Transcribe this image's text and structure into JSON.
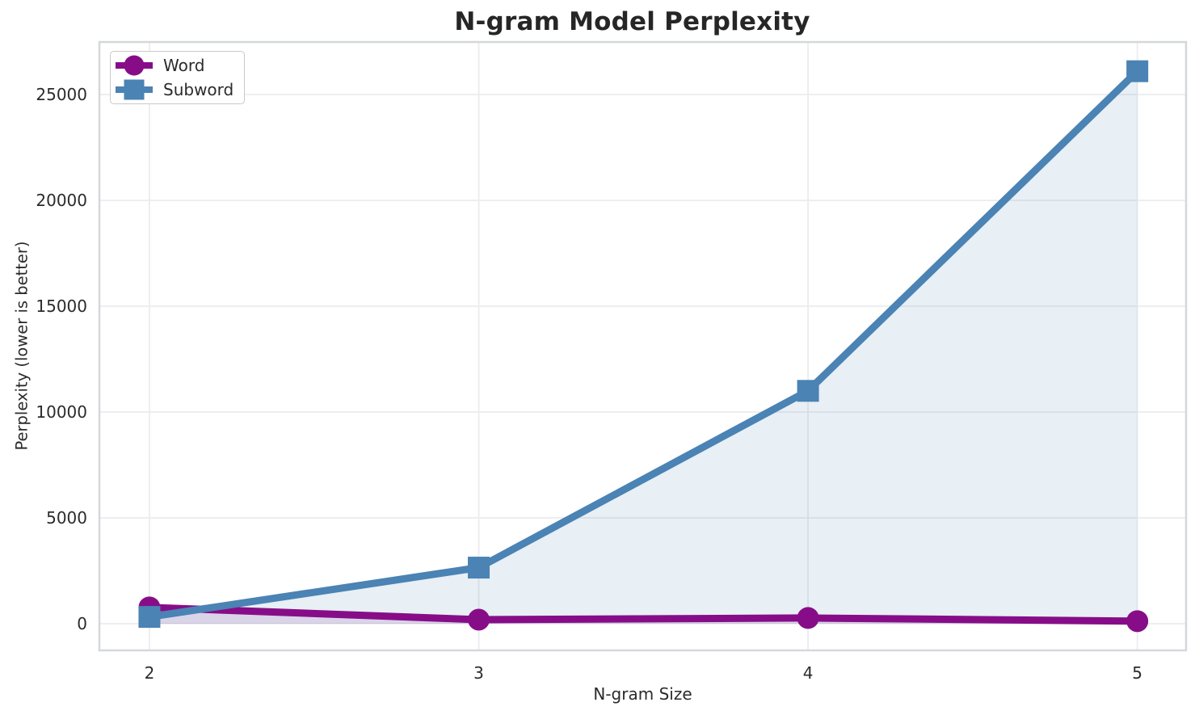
{
  "chart_data": {
    "type": "line",
    "title": "N-gram Model Perplexity",
    "xlabel": "N-gram Size",
    "ylabel": "Perplexity (lower is better)",
    "x": [
      2,
      3,
      4,
      5
    ],
    "series": [
      {
        "name": "Word",
        "color": "#870D88",
        "marker": "circle",
        "values": [
          770,
          190,
          270,
          120
        ],
        "fill_to_zero": true,
        "fill_alpha": 0.13
      },
      {
        "name": "Subword",
        "color": "#4A83B4",
        "marker": "square",
        "values": [
          320,
          2650,
          11000,
          26100
        ],
        "fill_to_zero": true,
        "fill_alpha": 0.13
      }
    ],
    "xticks": [
      2,
      3,
      4,
      5
    ],
    "yticks": [
      0,
      5000,
      10000,
      15000,
      20000,
      25000
    ],
    "xlim": [
      1.848,
      5.148
    ],
    "ylim": [
      -1260,
      27480
    ],
    "grid": true,
    "legend_position": "upper left",
    "colors": {
      "grid": "#ececee",
      "spine": "#d4d7db",
      "tick_text": "#2b2b2b",
      "title_text": "#262626",
      "background": "#ffffff"
    }
  }
}
